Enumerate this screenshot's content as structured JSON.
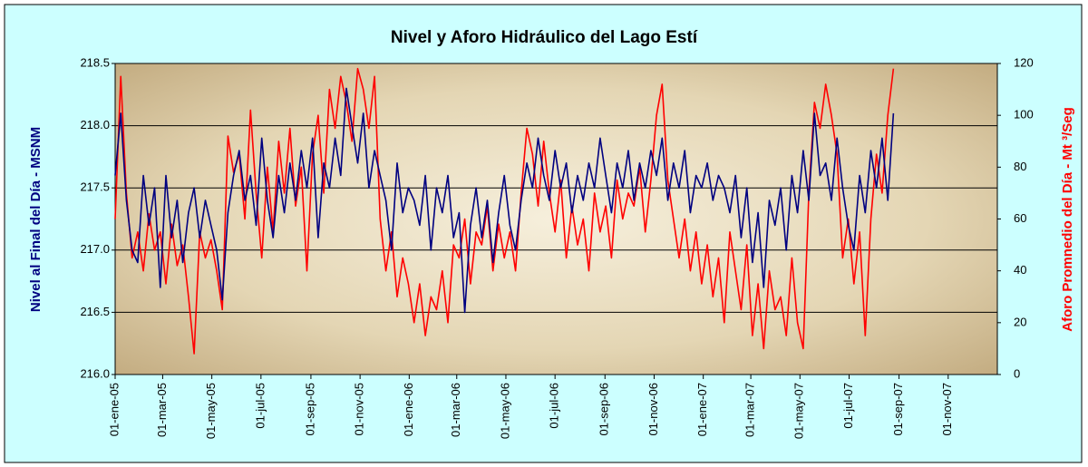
{
  "chart_data": {
    "type": "line",
    "title": "Nivel y Aforo Hidráulico del Lago Estí",
    "ylabel": "Nivel al Final del Día - MSNM",
    "y2label": "Aforo Promnedio del Día - Mt ³/Seg",
    "grid": true,
    "xlim": [
      "2005-01-01",
      "2008-01-01"
    ],
    "xticks": [
      {
        "value": "2005-01-01",
        "label": "01-ene-05"
      },
      {
        "value": "2005-03-01",
        "label": "01-mar-05"
      },
      {
        "value": "2005-05-01",
        "label": "01-may-05"
      },
      {
        "value": "2005-07-01",
        "label": "01-jul-05"
      },
      {
        "value": "2005-09-01",
        "label": "01-sep-05"
      },
      {
        "value": "2005-11-01",
        "label": "01-nov-05"
      },
      {
        "value": "2006-01-01",
        "label": "01-ene-06"
      },
      {
        "value": "2006-03-01",
        "label": "01-mar-06"
      },
      {
        "value": "2006-05-01",
        "label": "01-may-06"
      },
      {
        "value": "2006-07-01",
        "label": "01-jul-06"
      },
      {
        "value": "2006-09-01",
        "label": "01-sep-06"
      },
      {
        "value": "2006-11-01",
        "label": "01-nov-06"
      },
      {
        "value": "2007-01-01",
        "label": "01-ene-07"
      },
      {
        "value": "2007-03-01",
        "label": "01-mar-07"
      },
      {
        "value": "2007-05-01",
        "label": "01-may-07"
      },
      {
        "value": "2007-07-01",
        "label": "01-jul-07"
      },
      {
        "value": "2007-09-01",
        "label": "01-sep-07"
      },
      {
        "value": "2007-11-01",
        "label": "01-nov-07"
      }
    ],
    "ylim": [
      216,
      218.5
    ],
    "yticks": [
      {
        "value": 216,
        "label": "216.0"
      },
      216.5,
      {
        "value": 217,
        "label": "217.0"
      },
      217.5,
      {
        "value": 218,
        "label": "218.0"
      },
      218.5
    ],
    "y2lim": [
      0,
      120
    ],
    "y2ticks": [
      0,
      20,
      40,
      60,
      80,
      100,
      120
    ],
    "x": [
      "2005-01-01",
      "2005-01-08",
      "2005-01-15",
      "2005-01-22",
      "2005-01-29",
      "2005-02-05",
      "2005-02-12",
      "2005-02-19",
      "2005-02-26",
      "2005-03-05",
      "2005-03-12",
      "2005-03-19",
      "2005-03-26",
      "2005-04-02",
      "2005-04-09",
      "2005-04-16",
      "2005-04-23",
      "2005-04-30",
      "2005-05-07",
      "2005-05-14",
      "2005-05-21",
      "2005-05-28",
      "2005-06-04",
      "2005-06-11",
      "2005-06-18",
      "2005-06-25",
      "2005-07-02",
      "2005-07-09",
      "2005-07-16",
      "2005-07-23",
      "2005-07-30",
      "2005-08-06",
      "2005-08-13",
      "2005-08-20",
      "2005-08-27",
      "2005-09-03",
      "2005-09-10",
      "2005-09-17",
      "2005-09-24",
      "2005-10-01",
      "2005-10-08",
      "2005-10-15",
      "2005-10-22",
      "2005-10-29",
      "2005-11-05",
      "2005-11-12",
      "2005-11-19",
      "2005-11-26",
      "2005-12-03",
      "2005-12-10",
      "2005-12-17",
      "2005-12-24",
      "2005-12-31",
      "2006-01-07",
      "2006-01-14",
      "2006-01-21",
      "2006-01-28",
      "2006-02-04",
      "2006-02-11",
      "2006-02-18",
      "2006-02-25",
      "2006-03-04",
      "2006-03-11",
      "2006-03-18",
      "2006-03-25",
      "2006-04-01",
      "2006-04-08",
      "2006-04-15",
      "2006-04-22",
      "2006-04-29",
      "2006-05-06",
      "2006-05-13",
      "2006-05-20",
      "2006-05-27",
      "2006-06-03",
      "2006-06-10",
      "2006-06-17",
      "2006-06-24",
      "2006-07-01",
      "2006-07-08",
      "2006-07-15",
      "2006-07-22",
      "2006-07-29",
      "2006-08-05",
      "2006-08-12",
      "2006-08-19",
      "2006-08-26",
      "2006-09-02",
      "2006-09-09",
      "2006-09-16",
      "2006-09-23",
      "2006-09-30",
      "2006-10-07",
      "2006-10-14",
      "2006-10-21",
      "2006-10-28",
      "2006-11-04",
      "2006-11-11",
      "2006-11-18",
      "2006-11-25",
      "2006-12-02",
      "2006-12-09",
      "2006-12-16",
      "2006-12-23",
      "2006-12-30",
      "2007-01-06",
      "2007-01-13",
      "2007-01-20",
      "2007-01-27",
      "2007-02-03",
      "2007-02-10",
      "2007-02-17",
      "2007-02-24",
      "2007-03-03",
      "2007-03-10",
      "2007-03-17",
      "2007-03-24",
      "2007-03-31",
      "2007-04-07",
      "2007-04-14",
      "2007-04-21",
      "2007-04-28",
      "2007-05-05",
      "2007-05-12",
      "2007-05-19",
      "2007-05-26",
      "2007-06-02",
      "2007-06-09",
      "2007-06-16",
      "2007-06-23",
      "2007-06-30",
      "2007-07-07",
      "2007-07-14",
      "2007-07-21",
      "2007-07-28",
      "2007-08-04",
      "2007-08-11",
      "2007-08-18",
      "2007-08-25"
    ],
    "series": [
      {
        "color": "#000080",
        "values": [
          217.6,
          218.1,
          217.4,
          217.0,
          216.9,
          217.6,
          217.2,
          217.5,
          216.7,
          217.6,
          217.1,
          217.4,
          216.9,
          217.3,
          217.5,
          217.1,
          217.4,
          217.2,
          217.0,
          216.6,
          217.3,
          217.6,
          217.8,
          217.4,
          217.6,
          217.2,
          217.9,
          217.4,
          217.1,
          217.6,
          217.3,
          217.7,
          217.4,
          217.8,
          217.5,
          217.9,
          217.1,
          217.7,
          217.5,
          217.9,
          217.6,
          218.3,
          218.0,
          217.7,
          218.1,
          217.5,
          217.8,
          217.6,
          217.4,
          217.0,
          217.7,
          217.3,
          217.5,
          217.4,
          217.2,
          217.6,
          217.0,
          217.5,
          217.3,
          217.6,
          217.1,
          217.3,
          216.5,
          217.2,
          217.5,
          217.1,
          217.4,
          216.9,
          217.3,
          217.6,
          217.2,
          217.0,
          217.4,
          217.7,
          217.5,
          217.9,
          217.6,
          217.4,
          217.8,
          217.5,
          217.7,
          217.3,
          217.6,
          217.4,
          217.7,
          217.5,
          217.9,
          217.6,
          217.3,
          217.7,
          217.5,
          217.8,
          217.4,
          217.7,
          217.5,
          217.8,
          217.6,
          217.9,
          217.4,
          217.7,
          217.5,
          217.8,
          217.3,
          217.6,
          217.5,
          217.7,
          217.4,
          217.6,
          217.5,
          217.3,
          217.6,
          217.1,
          217.5,
          216.9,
          217.3,
          216.7,
          217.4,
          217.2,
          217.5,
          217.0,
          217.6,
          217.3,
          217.8,
          217.4,
          218.1,
          217.6,
          217.7,
          217.4,
          217.9,
          217.5,
          217.2,
          217.0,
          217.6,
          217.3,
          217.8,
          217.5,
          217.9,
          217.4,
          218.1
        ]
      },
      {
        "color": "#ff0000",
        "axis": "y2",
        "values": [
          60,
          115,
          70,
          45,
          55,
          40,
          62,
          48,
          55,
          35,
          58,
          42,
          50,
          30,
          8,
          55,
          45,
          52,
          40,
          25,
          92,
          78,
          85,
          60,
          102,
          70,
          45,
          80,
          55,
          90,
          70,
          95,
          65,
          80,
          40,
          85,
          100,
          70,
          110,
          95,
          115,
          105,
          90,
          118,
          110,
          95,
          115,
          60,
          40,
          55,
          30,
          45,
          35,
          20,
          35,
          15,
          30,
          25,
          40,
          20,
          50,
          45,
          60,
          35,
          55,
          50,
          65,
          40,
          58,
          45,
          55,
          40,
          70,
          95,
          85,
          65,
          90,
          70,
          55,
          75,
          45,
          65,
          50,
          60,
          40,
          70,
          55,
          65,
          45,
          75,
          60,
          70,
          65,
          80,
          55,
          75,
          100,
          112,
          75,
          60,
          45,
          60,
          40,
          55,
          35,
          50,
          30,
          45,
          20,
          55,
          40,
          25,
          50,
          15,
          35,
          10,
          40,
          25,
          30,
          15,
          45,
          20,
          10,
          70,
          105,
          95,
          112,
          100,
          85,
          45,
          60,
          35,
          55,
          15,
          60,
          85,
          70,
          100,
          118
        ]
      }
    ]
  }
}
